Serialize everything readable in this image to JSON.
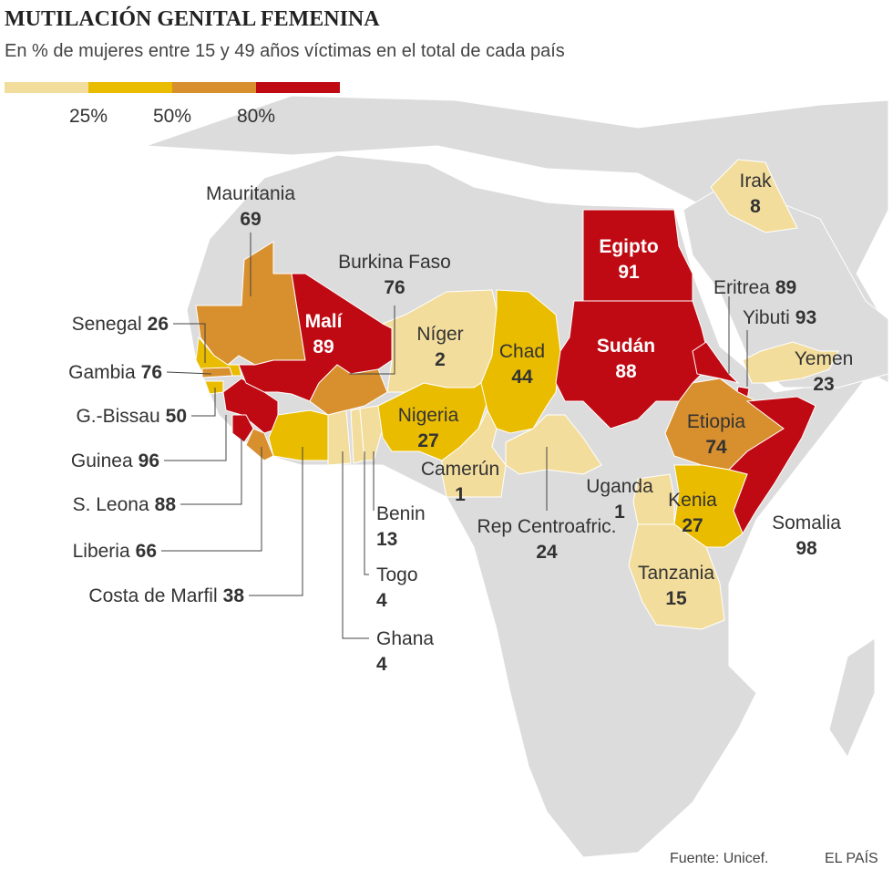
{
  "header": {
    "title": "MUTILACIÓN GENITAL FEMENINA",
    "subtitle": "En % de mujeres entre 15 y 49 años víctimas en el total de cada país"
  },
  "legend": {
    "colors": [
      "#f3dd9c",
      "#e9bc00",
      "#d88f2e",
      "#bf0a13"
    ],
    "ticks": [
      {
        "value": 25,
        "label": "25%"
      },
      {
        "value": 50,
        "label": "50%"
      },
      {
        "value": 80,
        "label": "80%"
      }
    ]
  },
  "countries": [
    {
      "name": "Mauritania",
      "value": 69
    },
    {
      "name": "Senegal",
      "value": 26
    },
    {
      "name": "Gambia",
      "value": 76
    },
    {
      "name": "G.-Bissau",
      "value": 50
    },
    {
      "name": "Guinea",
      "value": 96
    },
    {
      "name": "S. Leona",
      "value": 88
    },
    {
      "name": "Liberia",
      "value": 66
    },
    {
      "name": "Costa de Marfil",
      "value": 38
    },
    {
      "name": "Malí",
      "value": 89
    },
    {
      "name": "Burkina Faso",
      "value": 76
    },
    {
      "name": "Ghana",
      "value": 4
    },
    {
      "name": "Togo",
      "value": 4
    },
    {
      "name": "Benin",
      "value": 13
    },
    {
      "name": "Níger",
      "value": 2
    },
    {
      "name": "Nigeria",
      "value": 27
    },
    {
      "name": "Camerún",
      "value": 1
    },
    {
      "name": "Chad",
      "value": 44
    },
    {
      "name": "Rep Centroafric.",
      "value": 24
    },
    {
      "name": "Egipto",
      "value": 91
    },
    {
      "name": "Sudán",
      "value": 88
    },
    {
      "name": "Eritrea",
      "value": 89
    },
    {
      "name": "Yibuti",
      "value": 93
    },
    {
      "name": "Etiopia",
      "value": 74
    },
    {
      "name": "Somalia",
      "value": 98
    },
    {
      "name": "Kenia",
      "value": 27
    },
    {
      "name": "Uganda",
      "value": 1
    },
    {
      "name": "Tanzania",
      "value": 15
    },
    {
      "name": "Irak",
      "value": 8
    },
    {
      "name": "Yemen",
      "value": 23
    }
  ],
  "footer": {
    "source": "Fuente: Unicef.",
    "brand": "EL PAÍS"
  }
}
